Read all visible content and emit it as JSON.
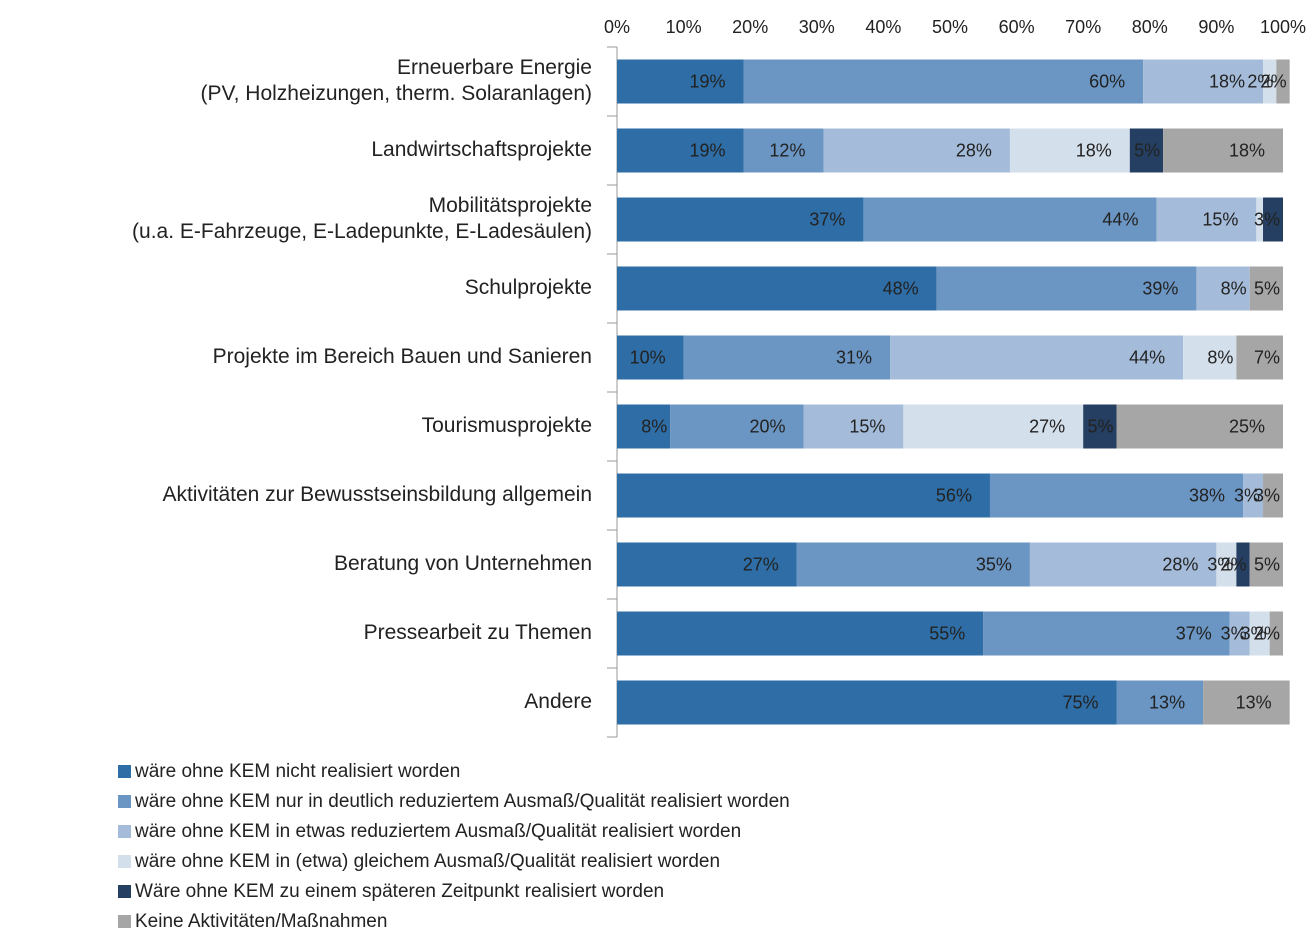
{
  "chart_data": {
    "type": "stacked_barh",
    "categories": [
      [
        "Erneuerbare Energie",
        "(PV, Holzheizungen, therm. Solaranlagen)"
      ],
      [
        "Landwirtschaftsprojekte"
      ],
      [
        "Mobilitätsprojekte",
        "(u.a. E-Fahrzeuge, E-Ladepunkte, E-Ladesäulen)"
      ],
      [
        "Schulprojekte"
      ],
      [
        "Projekte im Bereich Bauen und Sanieren"
      ],
      [
        "Tourismusprojekte"
      ],
      [
        "Aktivitäten zur Bewusstseinsbildung allgemein"
      ],
      [
        "Beratung von Unternehmen"
      ],
      [
        "Pressearbeit zu Themen"
      ],
      [
        "Andere"
      ]
    ],
    "series": [
      {
        "name": "wäre ohne KEM nicht realisiert worden",
        "color": "#2e6da5",
        "label_color": "#ffffff",
        "values": [
          19,
          19,
          37,
          48,
          10,
          8,
          56,
          27,
          55,
          75
        ],
        "value_labels": [
          "19%",
          "19%",
          "37%",
          "48%",
          "10%",
          "8%",
          "56%",
          "27%",
          "55%",
          "75%"
        ]
      },
      {
        "name": "wäre ohne KEM nur in deutlich reduziertem Ausmaß/Qualität realisiert worden",
        "color": "#6b96c3",
        "label_color": "#ffffff",
        "values": [
          60,
          12,
          44,
          39,
          31,
          20,
          38,
          35,
          37,
          13
        ],
        "value_labels": [
          "60%",
          "12%",
          "44%",
          "39%",
          "31%",
          "20%",
          "38%",
          "35%",
          "37%",
          "13%"
        ]
      },
      {
        "name": "wäre ohne KEM in etwas reduziertem Ausmaß/Qualität realisiert worden",
        "color": "#a4bcd9",
        "label_color": "#ffffff",
        "values": [
          18,
          28,
          15,
          8,
          44,
          15,
          3,
          28,
          3,
          null
        ],
        "value_labels": [
          "18%",
          "28%",
          "15%",
          "8%",
          "44%",
          "15%",
          "3%",
          "28%",
          "3%",
          null
        ]
      },
      {
        "name": "wäre ohne KEM in (etwa) gleichem Ausmaß/Qualität realisiert worden",
        "color": "#d4dfec",
        "label_color": "#333333",
        "values": [
          2,
          18,
          1,
          null,
          8,
          27,
          null,
          3,
          3,
          null
        ],
        "value_labels": [
          "2%",
          "18%",
          null,
          null,
          "8%",
          "27%",
          null,
          "3%",
          "3%",
          null
        ]
      },
      {
        "name": "Wäre ohne KEM zu einem späteren Zeitpunkt realisiert worden",
        "color": "#243f61",
        "label_color": "#ffffff",
        "values": [
          null,
          5,
          3,
          null,
          null,
          5,
          null,
          2,
          null,
          null
        ],
        "value_labels": [
          null,
          "5%",
          "3%",
          null,
          null,
          "5%",
          null,
          "2%",
          null,
          null
        ]
      },
      {
        "name": "Keine Aktivitäten/Maßnahmen",
        "color": "#a6a6a6",
        "label_color": "#333333",
        "values": [
          2,
          18,
          null,
          5,
          7,
          25,
          3,
          5,
          2,
          13
        ],
        "value_labels": [
          "2%",
          "18%",
          null,
          "5%",
          "7%",
          "25%",
          "3%",
          "5%",
          "2%",
          "13%"
        ]
      }
    ],
    "xlim": [
      0,
      100
    ],
    "xticks": [
      {
        "value": 0,
        "label": "0%"
      },
      {
        "value": 10,
        "label": "10%"
      },
      {
        "value": 20,
        "label": "20%"
      },
      {
        "value": 30,
        "label": "30%"
      },
      {
        "value": 40,
        "label": "40%"
      },
      {
        "value": 50,
        "label": "50%"
      },
      {
        "value": 60,
        "label": "60%"
      },
      {
        "value": 70,
        "label": "70%"
      },
      {
        "value": 80,
        "label": "80%"
      },
      {
        "value": 90,
        "label": "90%"
      },
      {
        "value": 100,
        "label": "100%"
      }
    ],
    "legend": "bottom"
  }
}
